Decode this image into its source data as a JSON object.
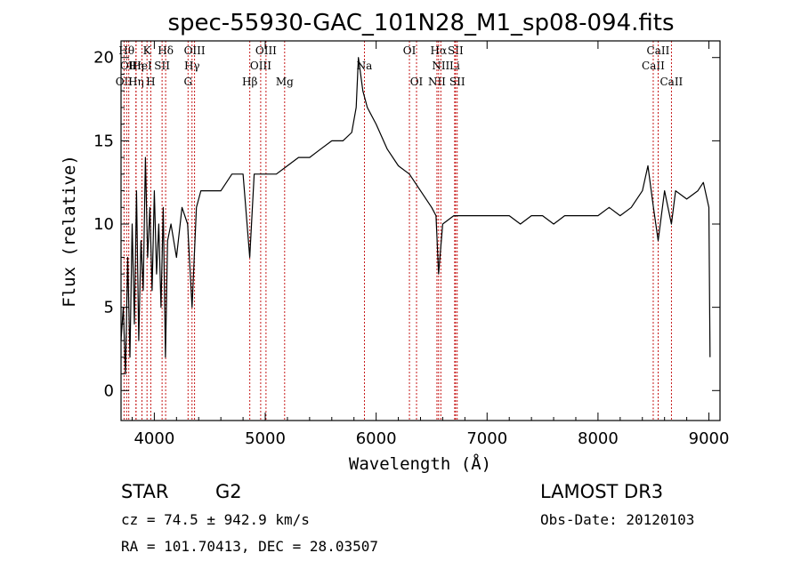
{
  "chart_data": {
    "type": "line",
    "title": "spec-55930-GAC_101N28_M1_sp08-094.fits",
    "xlabel": "Wavelength (Å)",
    "ylabel": "Flux (relative)",
    "xlim": [
      3700,
      9100
    ],
    "ylim": [
      -1.8,
      21
    ],
    "xticks": [
      4000,
      5000,
      6000,
      7000,
      8000,
      9000
    ],
    "yticks": [
      0,
      5,
      10,
      15,
      20
    ],
    "series": [
      {
        "x": [
          3700,
          3720,
          3740,
          3760,
          3780,
          3800,
          3820,
          3840,
          3860,
          3880,
          3900,
          3920,
          3940,
          3960,
          3980,
          4000,
          4020,
          4040,
          4060,
          4080,
          4100,
          4120,
          4150,
          4200,
          4250,
          4300,
          4340,
          4380,
          4420,
          4500,
          4600,
          4700,
          4800,
          4860,
          4900,
          5000,
          5100,
          5200,
          5300,
          5400,
          5500,
          5600,
          5700,
          5780,
          5820,
          5840,
          5860,
          5880,
          5920,
          6000,
          6100,
          6200,
          6300,
          6400,
          6500,
          6540,
          6563,
          6600,
          6700,
          6800,
          6900,
          7000,
          7100,
          7200,
          7300,
          7400,
          7500,
          7600,
          7700,
          7800,
          7900,
          8000,
          8100,
          8200,
          8300,
          8400,
          8450,
          8500,
          8542,
          8600,
          8662,
          8700,
          8800,
          8900,
          8950,
          9000,
          9010
        ],
        "y": [
          3,
          5,
          1,
          8,
          2,
          10,
          4,
          12,
          3,
          9,
          6,
          14,
          8,
          11,
          6,
          12,
          7,
          10,
          5,
          11,
          2,
          9,
          10,
          8,
          11,
          10,
          5,
          11,
          12,
          12,
          12,
          13,
          13,
          8,
          13,
          13,
          13,
          13.5,
          14,
          14,
          14.5,
          15,
          15,
          15.5,
          17,
          20,
          19,
          18,
          17,
          16,
          14.5,
          13.5,
          13,
          12,
          11,
          10.5,
          7,
          10,
          10.5,
          10.5,
          10.5,
          10.5,
          10.5,
          10.5,
          10,
          10.5,
          10.5,
          10,
          10.5,
          10.5,
          10.5,
          10.5,
          11,
          10.5,
          11,
          12,
          13.5,
          11,
          9,
          12,
          10,
          12,
          11.5,
          12,
          12.5,
          11,
          2
        ]
      }
    ],
    "line_markers": [
      {
        "wl": 3727,
        "row": 3,
        "label": "OII"
      },
      {
        "wl": 3750,
        "row": 1,
        "label": "Hθ"
      },
      {
        "wl": 3770,
        "row": 2,
        "label": "OII"
      },
      {
        "wl": 3835,
        "row": 2,
        "label": "Hη"
      },
      {
        "wl": 3835,
        "row": 3,
        "label": "Hη"
      },
      {
        "wl": 3889,
        "row": 2,
        "label": "HeI"
      },
      {
        "wl": 3934,
        "row": 1,
        "label": "K"
      },
      {
        "wl": 3968,
        "row": 3,
        "label": "H"
      },
      {
        "wl": 4070,
        "row": 2,
        "label": "SII"
      },
      {
        "wl": 4102,
        "row": 1,
        "label": "Hδ"
      },
      {
        "wl": 4304,
        "row": 3,
        "label": "G"
      },
      {
        "wl": 4340,
        "row": 2,
        "label": "Hγ"
      },
      {
        "wl": 4363,
        "row": 1,
        "label": "OIII"
      },
      {
        "wl": 4861,
        "row": 3,
        "label": "Hβ"
      },
      {
        "wl": 4959,
        "row": 2,
        "label": "OIII"
      },
      {
        "wl": 5007,
        "row": 1,
        "label": "OIII"
      },
      {
        "wl": 5175,
        "row": 3,
        "label": "Mg"
      },
      {
        "wl": 5894,
        "row": 2,
        "label": "Na"
      },
      {
        "wl": 6300,
        "row": 1,
        "label": "OI"
      },
      {
        "wl": 6364,
        "row": 3,
        "label": "OI"
      },
      {
        "wl": 6548,
        "row": 3,
        "label": "NII"
      },
      {
        "wl": 6563,
        "row": 1,
        "label": "Hα"
      },
      {
        "wl": 6583,
        "row": 2,
        "label": "NII"
      },
      {
        "wl": 6708,
        "row": 2,
        "label": "Li"
      },
      {
        "wl": 6716,
        "row": 1,
        "label": "SII"
      },
      {
        "wl": 6731,
        "row": 3,
        "label": "SII"
      },
      {
        "wl": 8498,
        "row": 2,
        "label": "CaII"
      },
      {
        "wl": 8542,
        "row": 1,
        "label": "CaII"
      },
      {
        "wl": 8662,
        "row": 3,
        "label": "CaII"
      }
    ],
    "grid": false,
    "legend": "none",
    "line_color": "#000000",
    "marker_color": "#c00000"
  },
  "info": {
    "object_class": "STAR",
    "subclass": "G2",
    "survey": "LAMOST DR3",
    "redshift": "cz = 74.5 ± 942.9 km/s",
    "obs_date": "Obs-Date: 20120103",
    "coords": "RA = 101.70413, DEC =  28.03507"
  }
}
